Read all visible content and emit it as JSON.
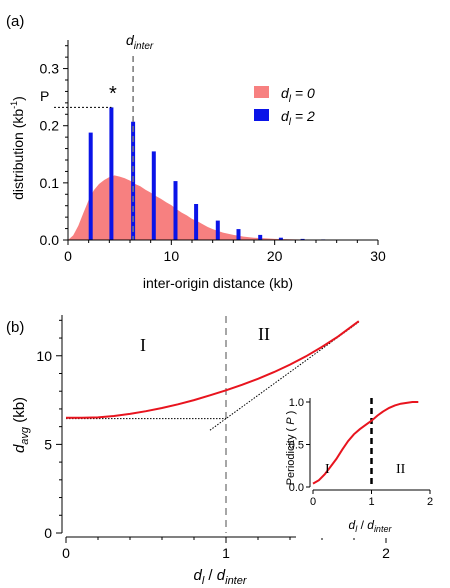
{
  "chart_data": [
    {
      "panel_label": "(a)",
      "type": "bar",
      "xlabel": "inter-origin distance (kb)",
      "ylabel": "distribution (kb",
      "ylabel_sup": "-1",
      "ylabel_close": ")",
      "xlim": [
        0,
        30
      ],
      "ylim": [
        0,
        0.35
      ],
      "x_ticks": [
        "0",
        "10",
        "20",
        "30"
      ],
      "y_ticks": [
        "0.0",
        "0.1",
        "0.2",
        "0.3"
      ],
      "annotations": {
        "p_label": "P",
        "star": "*",
        "vline_label_main": "d",
        "vline_label_sub": "inter",
        "vline_x": 6.3
      },
      "legend": [
        {
          "d": "d",
          "sub": "l",
          "eq": " = 0",
          "color": "#f78080"
        },
        {
          "d": "d",
          "sub": "l",
          "eq": " = 2",
          "color": "#0a14e8"
        }
      ],
      "series": [
        {
          "name": "dl = 0",
          "kind": "area",
          "color": "#f78080",
          "x": [
            0,
            0.5,
            1,
            1.5,
            2,
            2.5,
            3,
            3.5,
            4,
            4.5,
            5,
            5.5,
            6,
            6.5,
            7,
            7.5,
            8,
            8.5,
            9,
            9.5,
            10,
            10.5,
            11,
            11.5,
            12,
            12.5,
            13,
            13.5,
            14,
            14.5,
            15,
            15.5,
            16,
            17,
            18,
            19,
            20,
            21,
            22,
            24,
            26,
            28,
            30
          ],
          "y": [
            0.0,
            0.008,
            0.025,
            0.048,
            0.07,
            0.087,
            0.098,
            0.105,
            0.11,
            0.113,
            0.111,
            0.108,
            0.104,
            0.098,
            0.094,
            0.088,
            0.083,
            0.077,
            0.072,
            0.066,
            0.061,
            0.054,
            0.048,
            0.043,
            0.037,
            0.033,
            0.028,
            0.023,
            0.019,
            0.016,
            0.013,
            0.011,
            0.009,
            0.006,
            0.004,
            0.003,
            0.002,
            0.0015,
            0.001,
            0.0006,
            0.0003,
            0.0002,
            0.0
          ]
        },
        {
          "name": "dl = 2",
          "kind": "bars",
          "color": "#0a14e8",
          "x": [
            2.2,
            4.2,
            6.3,
            8.3,
            10.4,
            12.4,
            14.5,
            16.5,
            18.6,
            20.6,
            22.7,
            24.7,
            26.8,
            28.8
          ],
          "y": [
            0.188,
            0.232,
            0.207,
            0.155,
            0.103,
            0.063,
            0.034,
            0.019,
            0.009,
            0.004,
            0.002,
            0.001,
            0.0005,
            0.0002
          ]
        }
      ]
    },
    {
      "panel_label": "(b)",
      "type": "line",
      "xlabel_main_1": "d",
      "xlabel_sub_1": "l",
      "xlabel_sep": " / ",
      "xlabel_main_2": "d",
      "xlabel_sub_2": "inter",
      "ylabel_main": "d",
      "ylabel_sub": "avg",
      "ylabel_unit": " (kb)",
      "xlim": [
        0,
        2.0
      ],
      "ylim": [
        0,
        12.3
      ],
      "x_ticks": [
        "0",
        "1",
        "2"
      ],
      "y_ticks": [
        "0",
        "5",
        "10"
      ],
      "regions": [
        "I",
        "II"
      ],
      "vline_x": 1.0,
      "series": [
        {
          "name": "davg",
          "color": "#e8141e",
          "x": [
            0,
            0.1,
            0.2,
            0.3,
            0.4,
            0.5,
            0.6,
            0.7,
            0.8,
            0.9,
            1.0,
            1.1,
            1.2,
            1.3,
            1.4,
            1.5,
            1.6,
            1.7,
            1.8,
            1.83
          ],
          "y": [
            6.5,
            6.5,
            6.52,
            6.6,
            6.72,
            6.87,
            7.05,
            7.26,
            7.5,
            7.77,
            8.05,
            8.36,
            8.7,
            9.08,
            9.5,
            9.97,
            10.5,
            11.08,
            11.75,
            11.95
          ]
        }
      ],
      "asymptotes": [
        {
          "x": [
            0,
            1.0
          ],
          "y": [
            6.45,
            6.45
          ]
        },
        {
          "x": [
            0.9,
            1.83
          ],
          "y": [
            5.8,
            11.9
          ]
        }
      ],
      "inset": {
        "type": "line",
        "ylabel_text": "Periodicity ( ",
        "ylabel_var": "P",
        "ylabel_close": " )",
        "xlabel_main_1": "d",
        "xlabel_sub_1": "l",
        "xlabel_sep": " / ",
        "xlabel_main_2": "d",
        "xlabel_sub_2": "inter",
        "xlim": [
          0,
          2.0
        ],
        "ylim": [
          0,
          1.0
        ],
        "x_ticks": [
          "0",
          "1",
          "2"
        ],
        "y_ticks": [
          "0.0",
          "0.5",
          "1.0"
        ],
        "regions": [
          "I",
          "II"
        ],
        "vline_x": 1.0,
        "series": [
          {
            "name": "P",
            "color": "#e8141e",
            "x": [
              0,
              0.1,
              0.2,
              0.3,
              0.4,
              0.5,
              0.6,
              0.7,
              0.8,
              0.9,
              1.0,
              1.1,
              1.2,
              1.3,
              1.4,
              1.5,
              1.6,
              1.7,
              1.8
            ],
            "y": [
              0.04,
              0.08,
              0.15,
              0.24,
              0.33,
              0.44,
              0.54,
              0.62,
              0.68,
              0.73,
              0.78,
              0.84,
              0.89,
              0.93,
              0.96,
              0.98,
              0.99,
              1.0,
              1.0
            ]
          }
        ]
      }
    }
  ]
}
